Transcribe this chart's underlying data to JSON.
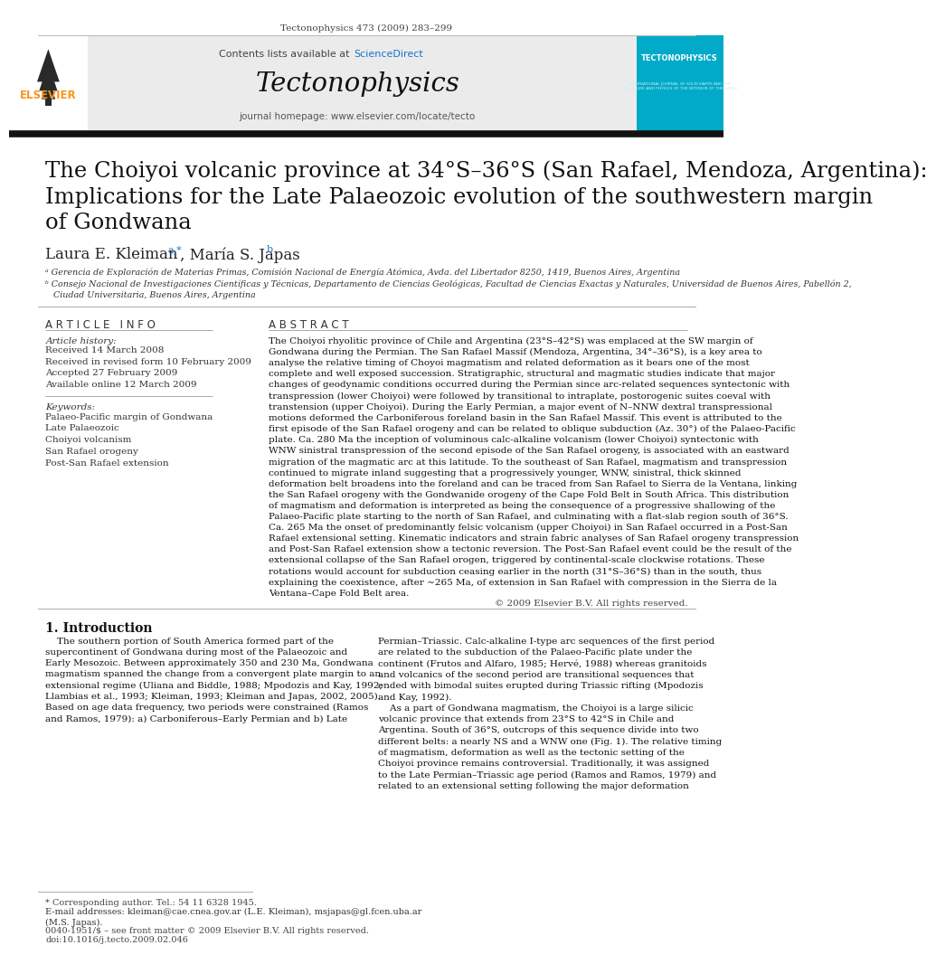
{
  "page_width": 10.2,
  "page_height": 13.59,
  "bg_color": "#ffffff",
  "header_journal_ref": "Tectonophysics 473 (2009) 283–299",
  "header_bg": "#e8e8e8",
  "header_title_journal": "Tectonophysics",
  "header_contents": "Contents lists available at",
  "header_sciencedirect": "ScienceDirect",
  "header_homepage": "journal homepage: www.elsevier.com/locate/tecto",
  "elsevier_color": "#f7941d",
  "sciencedirect_color": "#1a73c8",
  "tecto_bg": "#00aac8",
  "article_title": "The Choiyoi volcanic province at 34°S–36°S (San Rafael, Mendoza, Argentina):\nImplications for the Late Palaeozoic evolution of the southwestern margin\nof Gondwana",
  "authors": "Laura E. Kleiman",
  "authors2": ", María S. Japas",
  "affil_a": "ᵃ Gerencia de Exploración de Materias Primas, Comisión Nacional de Energía Atómica, Avda. del Libertador 8250, 1419, Buenos Aires, Argentina",
  "affil_b": "ᵇ Consejo Nacional de Investigaciones Científicas y Técnicas, Departamento de Ciencias Geológicas, Facultad de Ciencias Exactas y Naturales, Universidad de Buenos Aires, Pabellón 2,\n   Ciudad Universitaria, Buenos Aires, Argentina",
  "article_info_title": "A R T I C L E   I N F O",
  "article_history_label": "Article history:",
  "article_history": "Received 14 March 2008\nReceived in revised form 10 February 2009\nAccepted 27 February 2009\nAvailable online 12 March 2009",
  "keywords_label": "Keywords:",
  "keywords": "Palaeo-Pacific margin of Gondwana\nLate Palaeozoic\nChoiyoi volcanism\nSan Rafael orogeny\nPost-San Rafael extension",
  "abstract_title": "A B S T R A C T",
  "abstract_text": "The Choiyoi rhyolitic province of Chile and Argentina (23°S–42°S) was emplaced at the SW margin of\nGondwana during the Permian. The San Rafael Massif (Mendoza, Argentina, 34°–36°S), is a key area to\nanalyse the relative timing of Choyoi magmatism and related deformation as it bears one of the most\ncomplete and well exposed succession. Stratigraphic, structural and magmatic studies indicate that major\nchanges of geodynamic conditions occurred during the Permian since arc-related sequences syntectonic with\ntranspression (lower Choiyoi) were followed by transitional to intraplate, postorogenic suites coeval with\ntranstension (upper Choiyoi). During the Early Permian, a major event of N–NNW dextral transpressional\nmotions deformed the Carboniferous foreland basin in the San Rafael Massif. This event is attributed to the\nfirst episode of the San Rafael orogeny and can be related to oblique subduction (Az. 30°) of the Palaeo-Pacific\nplate. Ca. 280 Ma the inception of voluminous calc-alkaline volcanism (lower Choiyoi) syntectonic with\nWNW sinistral transpression of the second episode of the San Rafael orogeny, is associated with an eastward\nmigration of the magmatic arc at this latitude. To the southeast of San Rafael, magmatism and transpression\ncontinued to migrate inland suggesting that a progressively younger, WNW, sinistral, thick skinned\ndeformation belt broadens into the foreland and can be traced from San Rafael to Sierra de la Ventana, linking\nthe San Rafael orogeny with the Gondwanide orogeny of the Cape Fold Belt in South Africa. This distribution\nof magmatism and deformation is interpreted as being the consequence of a progressive shallowing of the\nPalaeo-Pacific plate starting to the north of San Rafael, and culminating with a flat-slab region south of 36°S.\nCa. 265 Ma the onset of predominantly felsic volcanism (upper Choiyoi) in San Rafael occurred in a Post-San\nRafael extensional setting. Kinematic indicators and strain fabric analyses of San Rafael orogeny transpression\nand Post-San Rafael extension show a tectonic reversion. The Post-San Rafael event could be the result of the\nextensional collapse of the San Rafael orogen, triggered by continental-scale clockwise rotations. These\nrotations would account for subduction ceasing earlier in the north (31°S–36°S) than in the south, thus\nexplaining the coexistence, after ~265 Ma, of extension in San Rafael with compression in the Sierra de la\nVentana–Cape Fold Belt area.",
  "copyright": "© 2009 Elsevier B.V. All rights reserved.",
  "intro_title": "1. Introduction",
  "intro_text_left": "    The southern portion of South America formed part of the\nsupercontinent of Gondwana during most of the Palaeozoic and\nEarly Mesozoic. Between approximately 350 and 230 Ma, Gondwana\nmagmatism spanned the change from a convergent plate margin to an\nextensional regime (Uliana and Biddle, 1988; Mpodozis and Kay, 1992;\nLlambias et al., 1993; Kleiman, 1993; Kleiman and Japas, 2002, 2005).\nBased on age data frequency, two periods were constrained (Ramos\nand Ramos, 1979): a) Carboniferous–Early Permian and b) Late",
  "intro_text_right": "Permian–Triassic. Calc-alkaline I-type arc sequences of the first period\nare related to the subduction of the Palaeo-Pacific plate under the\ncontinent (Frutos and Alfaro, 1985; Hervé, 1988) whereas granitoids\nand volcanics of the second period are transitional sequences that\nended with bimodal suites erupted during Triassic rifting (Mpodozis\nand Kay, 1992).\n    As a part of Gondwana magmatism, the Choiyoi is a large silicic\nvolcanic province that extends from 23°S to 42°S in Chile and\nArgentina. South of 36°S, outcrops of this sequence divide into two\ndifferent belts: a nearly NS and a WNW one (Fig. 1). The relative timing\nof magmatism, deformation as well as the tectonic setting of the\nChoiyoi province remains controversial. Traditionally, it was assigned\nto the Late Permian–Triassic age period (Ramos and Ramos, 1979) and\nrelated to an extensional setting following the major deformation",
  "footnote_star": "* Corresponding author. Tel.: 54 11 6328 1945.",
  "footnote_email": "E-mail addresses: kleiman@cae.cnea.gov.ar (L.E. Kleiman), msjapas@gl.fcen.uba.ar\n(M.S. Japas).",
  "footnote_issn": "0040-1951/$ – see front matter © 2009 Elsevier B.V. All rights reserved.",
  "footnote_doi": "doi:10.1016/j.tecto.2009.02.046"
}
